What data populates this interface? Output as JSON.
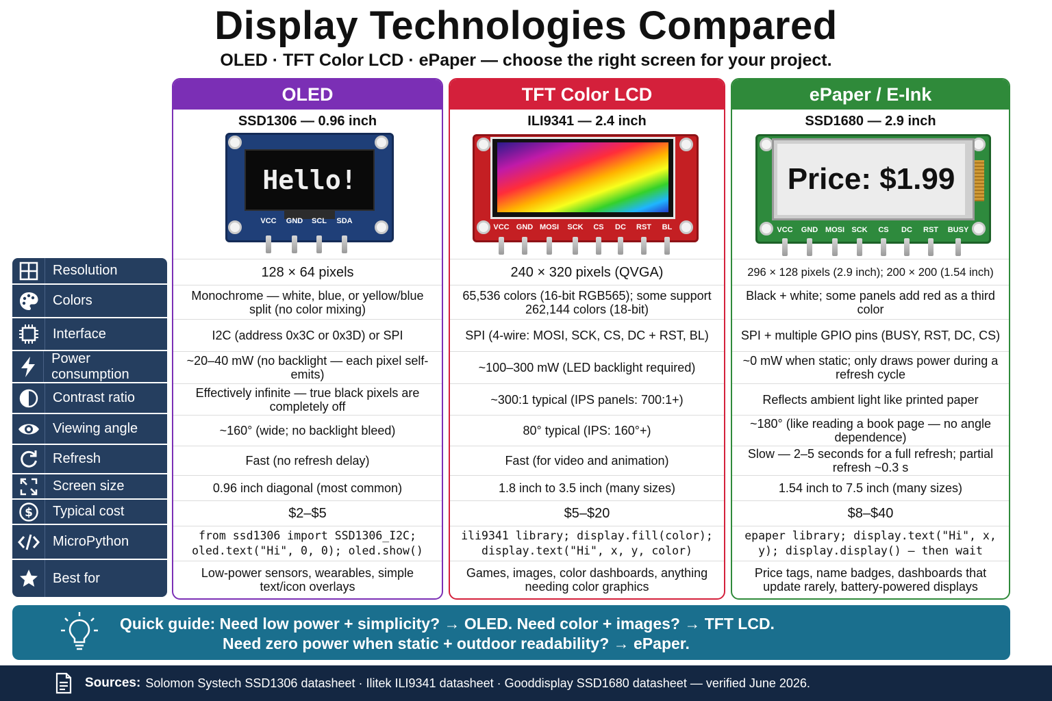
{
  "title": "Display Technologies Compared",
  "subtitle": "OLED · TFT Color LCD · ePaper — choose the right screen for your project.",
  "rows": [
    {
      "label": "Resolution",
      "icon": "grid-icon"
    },
    {
      "label": "Colors",
      "icon": "palette-icon"
    },
    {
      "label": "Interface",
      "icon": "chip-icon"
    },
    {
      "label": "Power consumption",
      "icon": "bolt-icon"
    },
    {
      "label": "Contrast ratio",
      "icon": "contrast-icon"
    },
    {
      "label": "Viewing angle",
      "icon": "eye-icon"
    },
    {
      "label": "Refresh",
      "icon": "refresh-icon"
    },
    {
      "label": "Screen size",
      "icon": "expand-icon"
    },
    {
      "label": "Typical cost",
      "icon": "dollar-icon"
    },
    {
      "label": "MicroPython",
      "icon": "code-icon"
    },
    {
      "label": "Best for",
      "icon": "star-icon"
    }
  ],
  "oled": {
    "header": "OLED",
    "model": "SSD1306 — 0.96 inch",
    "screen_text": "Hello!",
    "pins": [
      "VCC",
      "GND",
      "SCL",
      "SDA"
    ],
    "accent": "#7b2fb5",
    "cells": [
      "128 × 64 pixels",
      "Monochrome — white, blue, or yellow/blue split (no color mixing)",
      "I2C (address 0x3C or 0x3D) or SPI",
      "~20–40 mW (no backlight — each pixel self-emits)",
      "Effectively infinite — true black pixels are completely off",
      "~160° (wide; no backlight bleed)",
      "Fast (no refresh delay)",
      "0.96 inch diagonal (most common)",
      "$2–$5",
      "from ssd1306 import SSD1306_I2C; oled.text(\"Hi\", 0, 0); oled.show()",
      "Low-power sensors, wearables, simple text/icon overlays"
    ]
  },
  "tft": {
    "header": "TFT Color LCD",
    "model": "ILI9341 — 2.4 inch",
    "pins": [
      "VCC",
      "GND",
      "MOSI",
      "SCK",
      "CS",
      "DC",
      "RST",
      "BL"
    ],
    "accent": "#d4203b",
    "cells": [
      "240 × 320 pixels (QVGA)",
      "65,536 colors (16-bit RGB565); some support 262,144 colors (18-bit)",
      "SPI (4-wire: MOSI, SCK, CS, DC + RST, BL)",
      "~100–300 mW (LED backlight required)",
      "~300:1 typical (IPS panels: 700:1+)",
      "80° typical (IPS: 160°+)",
      "Fast (for video and animation)",
      "1.8 inch to 3.5 inch (many sizes)",
      "$5–$20",
      "ili9341 library; display.fill(color); display.text(\"Hi\", x, y, color)",
      "Games, images, color dashboards, anything needing color graphics"
    ]
  },
  "epd": {
    "header": "ePaper / E-Ink",
    "model": "SSD1680 — 2.9 inch",
    "screen_text": "Price: $1.99",
    "pins": [
      "VCC",
      "GND",
      "MOSI",
      "SCK",
      "CS",
      "DC",
      "RST",
      "BUSY"
    ],
    "accent": "#2f8a3a",
    "cells": [
      "296 × 128 pixels (2.9 inch); 200 × 200 (1.54 inch)",
      "Black + white; some panels add red as a third color",
      "SPI + multiple GPIO pins (BUSY, RST, DC, CS)",
      "~0 mW when static; only draws power during a refresh cycle",
      "Reflects ambient light like printed paper",
      "~180° (like reading a book page — no angle dependence)",
      "Slow — 2–5 seconds for a full refresh; partial refresh ~0.3 s",
      "1.54 inch to 7.5 inch (many sizes)",
      "$8–$40",
      "epaper library; display.text(\"Hi\", x, y); display.display() – then wait",
      "Price tags, name badges, dashboards that update rarely, battery-powered displays"
    ]
  },
  "guide": {
    "line1": "Quick guide: Need low power + simplicity? → OLED. Need color + images? → TFT LCD.",
    "line2": "Need zero power when static + outdoor readability? → ePaper."
  },
  "footer": {
    "label": "Sources:",
    "text": "Solomon Systech SSD1306 datasheet · Ilitek ILI9341 datasheet · Gooddisplay SSD1680 datasheet — verified June 2026."
  }
}
